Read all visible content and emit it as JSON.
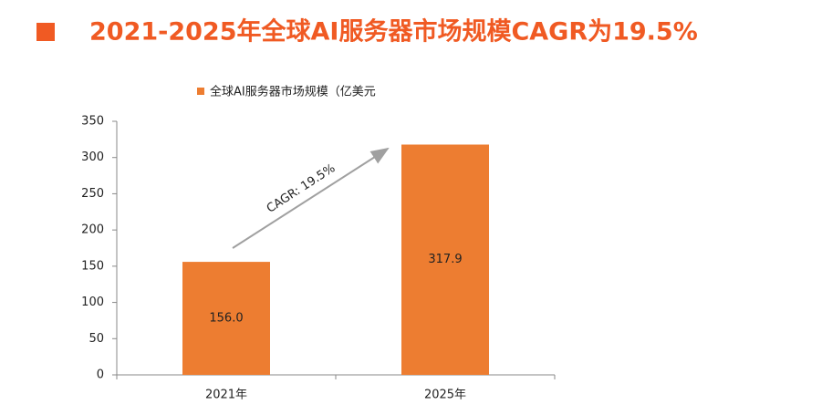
{
  "chart_data": {
    "type": "bar",
    "title": "2021-2025年全球AI服务器市场规模CAGR为19.5%",
    "categories": [
      "2021年",
      "2025年"
    ],
    "series": [
      {
        "name": "全球AI服务器市场规模（亿美元",
        "color": "#ed7d31",
        "values": [
          156.0,
          317.9
        ],
        "value_labels": [
          "156.0",
          "317.9"
        ]
      }
    ],
    "ylim": [
      0,
      350
    ],
    "yticks": [
      0,
      50,
      100,
      150,
      200,
      250,
      300,
      350
    ],
    "annotations": [
      "CAGR: 19.5%"
    ],
    "title_color": "#f05a23",
    "grid": false
  }
}
